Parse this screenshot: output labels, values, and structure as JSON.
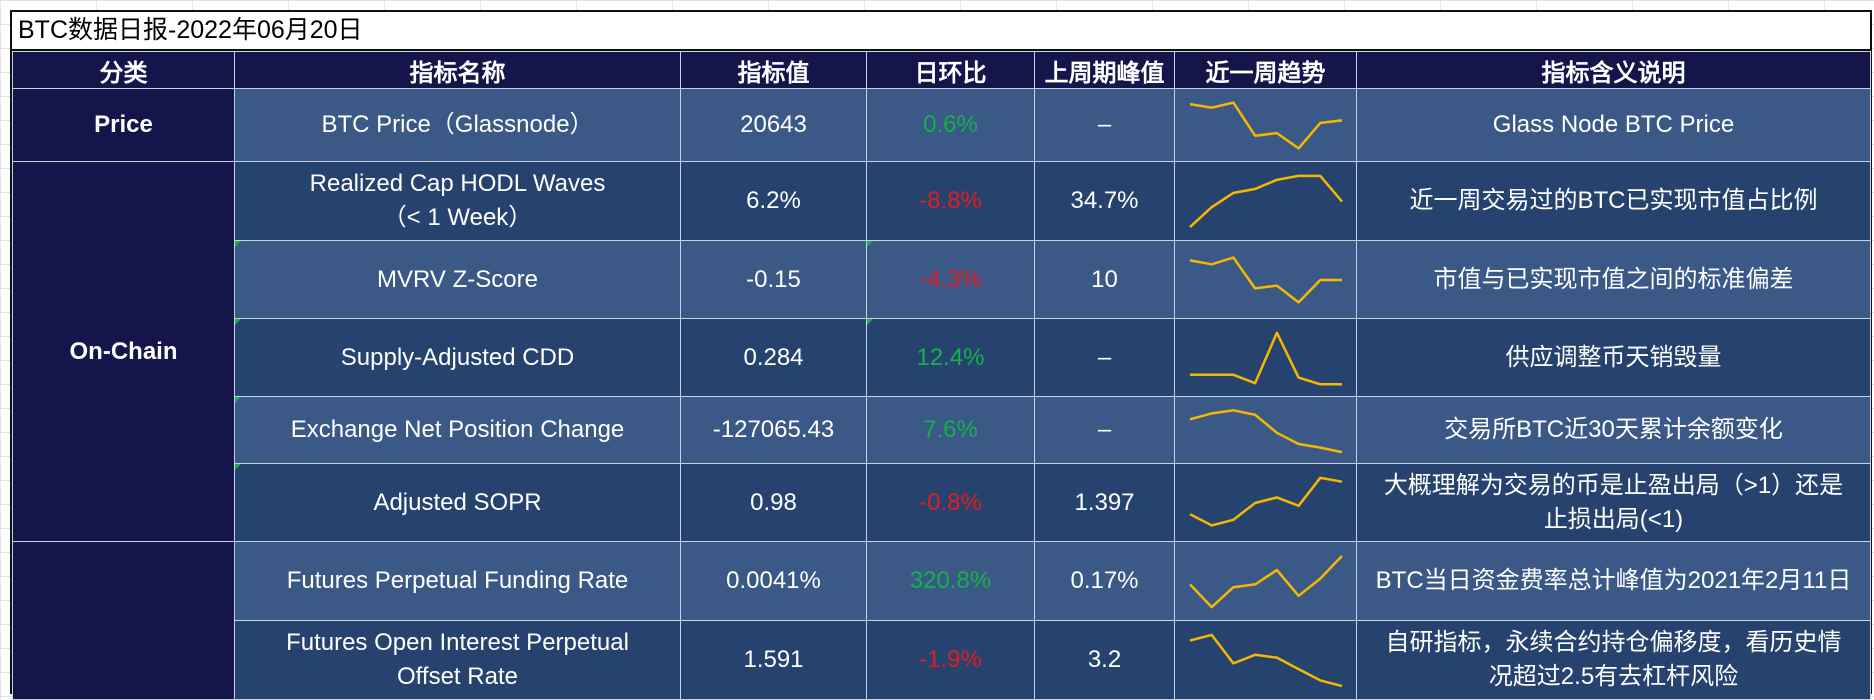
{
  "title": "BTC数据日报-2022年06月20日",
  "headers": [
    "分类",
    "指标名称",
    "指标值",
    "日环比",
    "上周期峰值",
    "近一周趋势",
    "指标含义说明"
  ],
  "categories": [
    {
      "label": "Price",
      "rows": 1
    },
    {
      "label": "On-Chain",
      "rows": 5
    },
    {
      "label": "",
      "rows": 2
    }
  ],
  "rows": [
    {
      "name": "BTC Price（Glassnode）",
      "name2": "",
      "value": "20643",
      "change": "0.6%",
      "change_dir": "up",
      "peak": "–",
      "desc": "Glass Node BTC Price",
      "desc2": "",
      "trend": [
        0.92,
        0.85,
        0.95,
        0.3,
        0.35,
        0.05,
        0.55,
        0.6
      ]
    },
    {
      "name": "Realized Cap HODL Waves",
      "name2": "（< 1 Week）",
      "value": "6.2%",
      "change": "-8.8%",
      "change_dir": "down",
      "peak": "34.7%",
      "desc": "近一周交易过的BTC已实现市值占比例",
      "desc2": "",
      "trend": [
        0.05,
        0.4,
        0.65,
        0.72,
        0.88,
        0.95,
        0.95,
        0.5
      ]
    },
    {
      "name": "MVRV Z-Score",
      "name2": "",
      "value": "-0.15",
      "change": "-4.3%",
      "change_dir": "down",
      "peak": "10",
      "desc": "市值与已实现市值之间的标准偏差",
      "desc2": "",
      "trend": [
        0.85,
        0.78,
        0.9,
        0.35,
        0.4,
        0.1,
        0.5,
        0.5
      ]
    },
    {
      "name": "Supply-Adjusted CDD",
      "name2": "",
      "value": "0.284",
      "change": "12.4%",
      "change_dir": "up",
      "peak": "–",
      "desc": "供应调整币天销毁量",
      "desc2": "",
      "trend": [
        0.2,
        0.2,
        0.2,
        0.05,
        0.95,
        0.15,
        0.03,
        0.03
      ]
    },
    {
      "name": "Exchange Net Position Change",
      "name2": "",
      "value": "-127065.43",
      "change": "7.6%",
      "change_dir": "up",
      "peak": "–",
      "desc": "交易所BTC近30天累计余额变化",
      "desc2": "",
      "trend": [
        0.75,
        0.88,
        0.95,
        0.85,
        0.45,
        0.2,
        0.12,
        0.02
      ]
    },
    {
      "name": "Adjusted SOPR",
      "name2": "",
      "value": "0.98",
      "change": "-0.8%",
      "change_dir": "down",
      "peak": "1.397",
      "desc": "大概理解为交易的币是止盈出局（>1）还是",
      "desc2": "止损出局(<1)",
      "trend": [
        0.3,
        0.1,
        0.2,
        0.5,
        0.6,
        0.45,
        0.95,
        0.88
      ]
    },
    {
      "name": "Futures Perpetual Funding Rate",
      "name2": "",
      "value": "0.0041%",
      "change": "320.8%",
      "change_dir": "up",
      "peak": "0.17%",
      "desc": "BTC当日资金费率总计峰值为2021年2月11日",
      "desc2": "",
      "trend": [
        0.45,
        0.05,
        0.4,
        0.45,
        0.7,
        0.25,
        0.55,
        0.95
      ]
    },
    {
      "name": "Futures Open Interest Perpetual",
      "name2": "Offset Rate",
      "value": "1.591",
      "change": "-1.9%",
      "change_dir": "down",
      "peak": "3.2",
      "desc": "自研指标，永续合约持仓偏移度，看历史情",
      "desc2": "况超过2.5有去杠杆风险",
      "trend": [
        0.85,
        0.95,
        0.45,
        0.6,
        0.55,
        0.35,
        0.15,
        0.05
      ]
    }
  ],
  "colors": {
    "up": "#18b04a",
    "down": "#e21b22",
    "trend": "#f5b800",
    "header": "#14154a"
  }
}
